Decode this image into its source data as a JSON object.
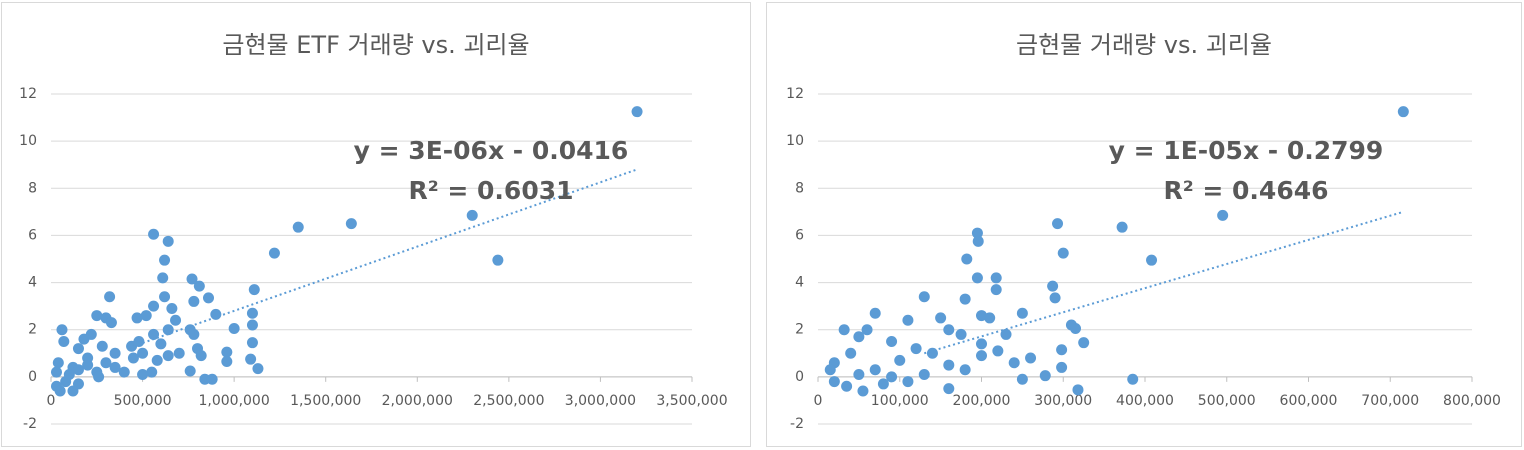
{
  "chart_data": [
    {
      "type": "scatter",
      "title": "금현물 ETF 거래량 vs. 괴리율",
      "color": "#5b9bd5",
      "grid": true,
      "annotations": [
        "y = 3E-06x - 0.0416",
        "R² = 0.6031"
      ],
      "xlim": [
        0,
        3500000
      ],
      "ylim": [
        -2,
        12
      ],
      "xticks": [
        0,
        {
          "value": 500000,
          "label": "500,000"
        },
        {
          "value": 1000000,
          "label": "1,000,000"
        },
        {
          "value": 1500000,
          "label": "1,500,000"
        },
        {
          "value": 2000000,
          "label": "2,000,000"
        },
        {
          "value": 2500000,
          "label": "2,500,000"
        },
        {
          "value": 3000000,
          "label": "3,000,000"
        },
        {
          "value": 3500000,
          "label": "3,500,000"
        }
      ],
      "yticks": [
        -2,
        0,
        2,
        4,
        6,
        8,
        10,
        12
      ],
      "trendline": {
        "x": [
          450000,
          3200000
        ],
        "y": [
          1.3,
          8.8
        ]
      },
      "x": [
        3200000,
        2300000,
        2440000,
        1640000,
        1350000,
        1220000,
        1110000,
        1100000,
        1100000,
        1100000,
        1090000,
        1130000,
        1000000,
        960000,
        960000,
        900000,
        860000,
        810000,
        770000,
        780000,
        780000,
        760000,
        800000,
        820000,
        840000,
        880000,
        760000,
        560000,
        640000,
        620000,
        610000,
        620000,
        660000,
        680000,
        640000,
        560000,
        520000,
        470000,
        560000,
        600000,
        640000,
        580000,
        500000,
        450000,
        550000,
        320000,
        300000,
        250000,
        330000,
        220000,
        180000,
        150000,
        280000,
        350000,
        300000,
        200000,
        120000,
        60000,
        70000,
        40000,
        30000,
        30000,
        50000,
        80000,
        100000,
        150000,
        250000,
        350000,
        400000,
        150000,
        120000,
        200000,
        260000,
        500000,
        700000,
        440000,
        480000
      ],
      "y": [
        11.25,
        6.85,
        4.95,
        6.5,
        6.35,
        5.25,
        3.7,
        2.7,
        2.2,
        1.45,
        0.75,
        0.35,
        2.05,
        1.05,
        0.65,
        2.65,
        3.35,
        3.85,
        4.15,
        3.2,
        1.8,
        2.0,
        1.2,
        0.9,
        -0.1,
        -0.1,
        0.25,
        6.05,
        5.75,
        4.95,
        4.2,
        3.4,
        2.9,
        2.4,
        2.0,
        3.0,
        2.6,
        2.5,
        1.8,
        1.4,
        0.9,
        0.7,
        1.0,
        0.8,
        0.2,
        3.4,
        2.5,
        2.6,
        2.3,
        1.8,
        1.6,
        1.2,
        1.3,
        1.0,
        0.6,
        0.8,
        0.4,
        2.0,
        1.5,
        0.6,
        0.2,
        -0.4,
        -0.6,
        -0.2,
        0.1,
        0.3,
        0.2,
        0.4,
        0.2,
        -0.3,
        -0.6,
        0.5,
        0.0,
        0.1,
        1.0,
        1.3,
        1.5
      ]
    },
    {
      "type": "scatter",
      "title": "금현물 거래량 vs. 괴리율",
      "color": "#5b9bd5",
      "grid": true,
      "annotations": [
        "y = 1E-05x - 0.2799",
        "R² = 0.4646"
      ],
      "xlim": [
        0,
        800000
      ],
      "ylim": [
        -2,
        12
      ],
      "xticks": [
        0,
        {
          "value": 100000,
          "label": "100,000"
        },
        {
          "value": 200000,
          "label": "200,000"
        },
        {
          "value": 300000,
          "label": "300,000"
        },
        {
          "value": 400000,
          "label": "400,000"
        },
        {
          "value": 500000,
          "label": "500,000"
        },
        {
          "value": 600000,
          "label": "600,000"
        },
        {
          "value": 700000,
          "label": "700,000"
        },
        {
          "value": 800000,
          "label": "800,000"
        }
      ],
      "yticks": [
        -2,
        0,
        2,
        4,
        6,
        8,
        10,
        12
      ],
      "trendline": {
        "x": [
          130000,
          716000
        ],
        "y": [
          1.0,
          7.0
        ]
      },
      "x": [
        716000,
        495000,
        408000,
        293000,
        372000,
        300000,
        218000,
        195000,
        196000,
        182000,
        195000,
        218000,
        287000,
        290000,
        130000,
        180000,
        200000,
        210000,
        250000,
        310000,
        315000,
        325000,
        298000,
        298000,
        278000,
        250000,
        318000,
        385000,
        150000,
        160000,
        175000,
        110000,
        70000,
        60000,
        32000,
        50000,
        90000,
        120000,
        140000,
        160000,
        180000,
        200000,
        220000,
        240000,
        260000,
        20000,
        15000,
        20000,
        35000,
        50000,
        70000,
        80000,
        100000,
        130000,
        160000,
        90000,
        40000,
        55000,
        110000,
        200000,
        230000
      ],
      "y": [
        11.25,
        6.85,
        4.95,
        6.5,
        6.35,
        5.25,
        3.7,
        6.1,
        5.75,
        5.0,
        4.2,
        4.2,
        3.85,
        3.35,
        3.4,
        3.3,
        2.6,
        2.5,
        2.7,
        2.2,
        2.05,
        1.45,
        1.15,
        0.4,
        0.05,
        -0.1,
        -0.55,
        -0.1,
        2.5,
        2.0,
        1.8,
        2.4,
        2.7,
        2.0,
        2.0,
        1.7,
        1.5,
        1.2,
        1.0,
        0.5,
        0.3,
        0.9,
        1.1,
        0.6,
        0.8,
        0.6,
        0.3,
        -0.2,
        -0.4,
        0.1,
        0.3,
        -0.3,
        0.7,
        0.1,
        -0.5,
        0.0,
        1.0,
        -0.6,
        -0.2,
        1.4,
        1.8
      ]
    }
  ]
}
